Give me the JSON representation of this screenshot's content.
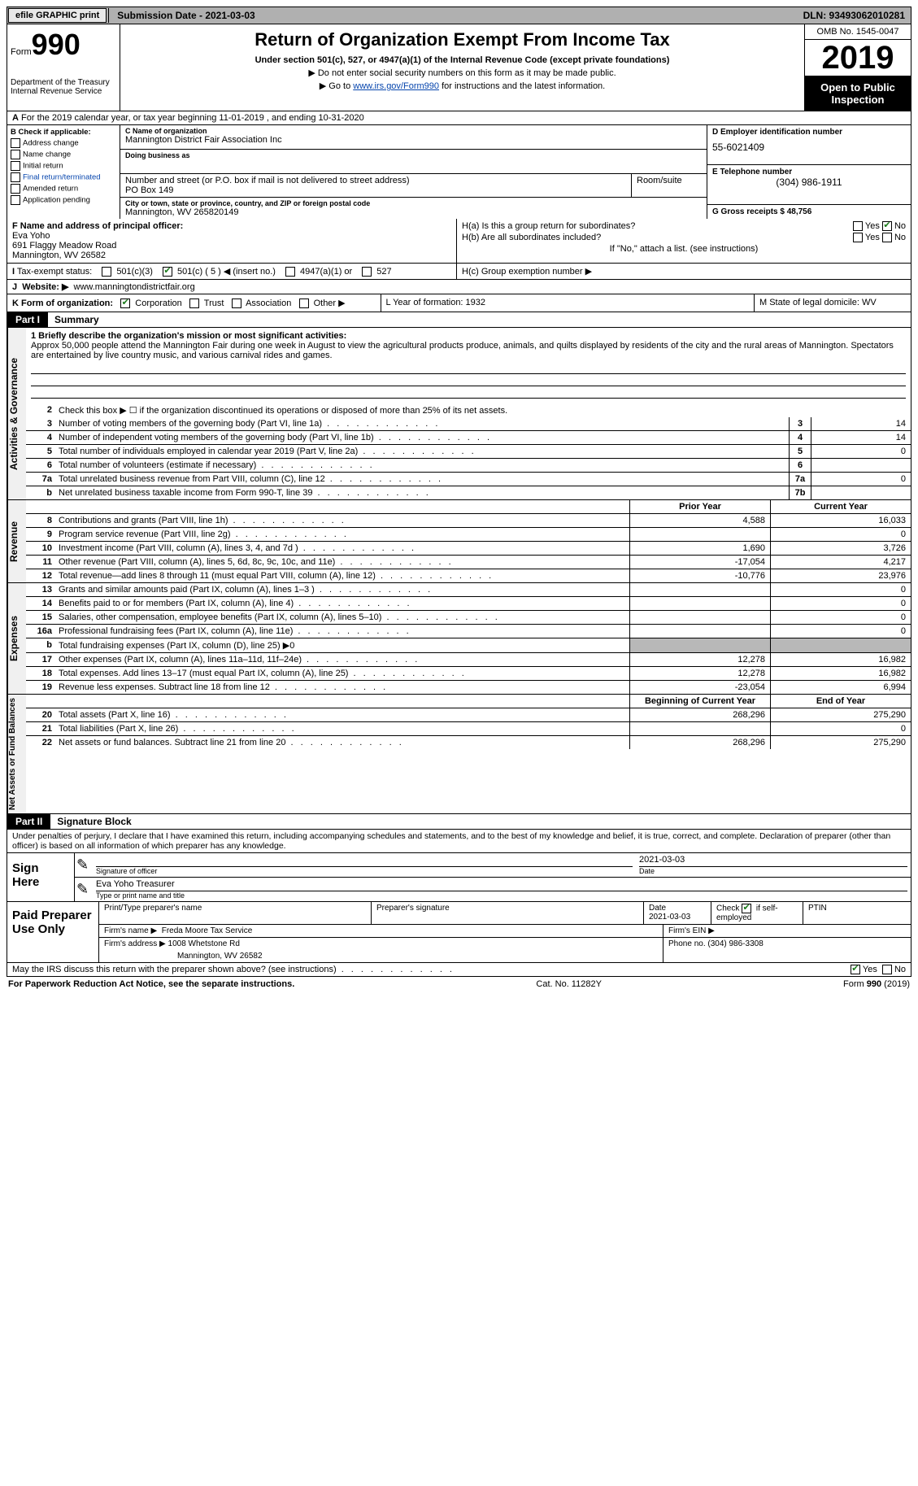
{
  "top_bar": {
    "efile_label": "efile GRAPHIC print",
    "submission_label": "Submission Date - 2021-03-03",
    "dln": "DLN: 93493062010281"
  },
  "header": {
    "form_label": "Form",
    "form_number": "990",
    "dept": "Department of the Treasury\nInternal Revenue Service",
    "title": "Return of Organization Exempt From Income Tax",
    "subtitle": "Under section 501(c), 527, or 4947(a)(1) of the Internal Revenue Code (except private foundations)",
    "note1": "▶ Do not enter social security numbers on this form as it may be made public.",
    "note2_pre": "▶ Go to ",
    "note2_link": "www.irs.gov/Form990",
    "note2_post": " for instructions and the latest information.",
    "omb": "OMB No. 1545-0047",
    "year": "2019",
    "public": "Open to Public Inspection"
  },
  "line_a": "For the 2019 calendar year, or tax year beginning 11-01-2019    , and ending 10-31-2020",
  "box_b": {
    "title": "B Check if applicable:",
    "items": [
      "Address change",
      "Name change",
      "Initial return",
      "Final return/terminated",
      "Amended return",
      "Application pending"
    ]
  },
  "box_c": {
    "name_label": "C Name of organization",
    "name": "Mannington District Fair Association Inc",
    "dba_label": "Doing business as",
    "street_label": "Number and street (or P.O. box if mail is not delivered to street address)",
    "room_label": "Room/suite",
    "street": "PO Box 149",
    "city_label": "City or town, state or province, country, and ZIP or foreign postal code",
    "city": "Mannington, WV  265820149"
  },
  "box_d": {
    "label": "D Employer identification number",
    "value": "55-6021409"
  },
  "box_e": {
    "label": "E Telephone number",
    "value": "(304) 986-1911"
  },
  "box_g": {
    "label": "G Gross receipts $ 48,756"
  },
  "box_f": {
    "label": "F  Name and address of principal officer:",
    "line1": "Eva Yoho",
    "line2": "691 Flaggy Meadow Road",
    "line3": "Mannington, WV  26582"
  },
  "box_h": {
    "a_label": "H(a)  Is this a group return for subordinates?",
    "b_label": "H(b)  Are all subordinates included?",
    "note": "If \"No,\" attach a list. (see instructions)",
    "c_label": "H(c)  Group exemption number ▶"
  },
  "tax_exempt": {
    "label": "Tax-exempt status:",
    "opt1": "501(c)(3)",
    "opt2": "501(c) ( 5 ) ◀ (insert no.)",
    "opt3": "4947(a)(1) or",
    "opt4": "527"
  },
  "website": {
    "label": "Website: ▶",
    "value": "www.manningtondistrictfair.org"
  },
  "box_k": {
    "label": "K Form of organization:",
    "opts": [
      "Corporation",
      "Trust",
      "Association",
      "Other ▶"
    ]
  },
  "box_l": "L Year of formation: 1932",
  "box_m": "M State of legal domicile: WV",
  "part1": {
    "label": "Part I",
    "title": "Summary",
    "mission_label": "1   Briefly describe the organization's mission or most significant activities:",
    "mission": "Approx 50,000 people attend the Mannington Fair during one week in August to view the agricultural products produce, animals, and quilts displayed by residents of the city and the rural areas of Mannington. Spectators are entertained by live country music, and various carnival rides and games.",
    "line2": "Check this box ▶ ☐  if the organization discontinued its operations or disposed of more than 25% of its net assets.",
    "ag_lines": [
      {
        "n": "3",
        "t": "Number of voting members of the governing body (Part VI, line 1a)",
        "box": "3",
        "v": "14"
      },
      {
        "n": "4",
        "t": "Number of independent voting members of the governing body (Part VI, line 1b)",
        "box": "4",
        "v": "14"
      },
      {
        "n": "5",
        "t": "Total number of individuals employed in calendar year 2019 (Part V, line 2a)",
        "box": "5",
        "v": "0"
      },
      {
        "n": "6",
        "t": "Total number of volunteers (estimate if necessary)",
        "box": "6",
        "v": ""
      },
      {
        "n": "7a",
        "t": "Total unrelated business revenue from Part VIII, column (C), line 12",
        "box": "7a",
        "v": "0"
      },
      {
        "n": "b",
        "t": "Net unrelated business taxable income from Form 990-T, line 39",
        "box": "7b",
        "v": ""
      }
    ],
    "col_h1": "Prior Year",
    "col_h2": "Current Year",
    "rev_lines": [
      {
        "n": "8",
        "t": "Contributions and grants (Part VIII, line 1h)",
        "p": "4,588",
        "c": "16,033"
      },
      {
        "n": "9",
        "t": "Program service revenue (Part VIII, line 2g)",
        "p": "",
        "c": "0"
      },
      {
        "n": "10",
        "t": "Investment income (Part VIII, column (A), lines 3, 4, and 7d )",
        "p": "1,690",
        "c": "3,726"
      },
      {
        "n": "11",
        "t": "Other revenue (Part VIII, column (A), lines 5, 6d, 8c, 9c, 10c, and 11e)",
        "p": "-17,054",
        "c": "4,217"
      },
      {
        "n": "12",
        "t": "Total revenue—add lines 8 through 11 (must equal Part VIII, column (A), line 12)",
        "p": "-10,776",
        "c": "23,976"
      }
    ],
    "exp_lines": [
      {
        "n": "13",
        "t": "Grants and similar amounts paid (Part IX, column (A), lines 1–3 )",
        "p": "",
        "c": "0"
      },
      {
        "n": "14",
        "t": "Benefits paid to or for members (Part IX, column (A), line 4)",
        "p": "",
        "c": "0"
      },
      {
        "n": "15",
        "t": "Salaries, other compensation, employee benefits (Part IX, column (A), lines 5–10)",
        "p": "",
        "c": "0"
      },
      {
        "n": "16a",
        "t": "Professional fundraising fees (Part IX, column (A), line 11e)",
        "p": "",
        "c": "0"
      },
      {
        "n": "b",
        "t": "Total fundraising expenses (Part IX, column (D), line 25) ▶0",
        "p": "GREY",
        "c": "GREY"
      },
      {
        "n": "17",
        "t": "Other expenses (Part IX, column (A), lines 11a–11d, 11f–24e)",
        "p": "12,278",
        "c": "16,982"
      },
      {
        "n": "18",
        "t": "Total expenses. Add lines 13–17 (must equal Part IX, column (A), line 25)",
        "p": "12,278",
        "c": "16,982"
      },
      {
        "n": "19",
        "t": "Revenue less expenses. Subtract line 18 from line 12",
        "p": "-23,054",
        "c": "6,994"
      }
    ],
    "na_h1": "Beginning of Current Year",
    "na_h2": "End of Year",
    "na_lines": [
      {
        "n": "20",
        "t": "Total assets (Part X, line 16)",
        "p": "268,296",
        "c": "275,290"
      },
      {
        "n": "21",
        "t": "Total liabilities (Part X, line 26)",
        "p": "",
        "c": "0"
      },
      {
        "n": "22",
        "t": "Net assets or fund balances. Subtract line 21 from line 20",
        "p": "268,296",
        "c": "275,290"
      }
    ]
  },
  "part2": {
    "label": "Part II",
    "title": "Signature Block",
    "declaration": "Under penalties of perjury, I declare that I have examined this return, including accompanying schedules and statements, and to the best of my knowledge and belief, it is true, correct, and complete. Declaration of preparer (other than officer) is based on all information of which preparer has any knowledge."
  },
  "sign": {
    "here": "Sign Here",
    "date": "2021-03-03",
    "sig_label": "Signature of officer",
    "date_label": "Date",
    "name": "Eva Yoho  Treasurer",
    "name_label": "Type or print name and title"
  },
  "prep": {
    "label": "Paid Preparer Use Only",
    "h1": "Print/Type preparer's name",
    "h2": "Preparer's signature",
    "h3_label": "Date",
    "h3": "2021-03-03",
    "h4": "Check ☑ if self-employed",
    "h5": "PTIN",
    "firm_label": "Firm's name    ▶",
    "firm": "Freda Moore Tax Service",
    "ein_label": "Firm's EIN ▶",
    "addr_label": "Firm's address ▶",
    "addr1": "1008 Whetstone Rd",
    "addr2": "Mannington, WV  26582",
    "phone_label": "Phone no. (304) 986-3308"
  },
  "discuss": "May the IRS discuss this return with the preparer shown above? (see instructions)",
  "footer": {
    "left": "For Paperwork Reduction Act Notice, see the separate instructions.",
    "center": "Cat. No. 11282Y",
    "right": "Form 990 (2019)"
  }
}
